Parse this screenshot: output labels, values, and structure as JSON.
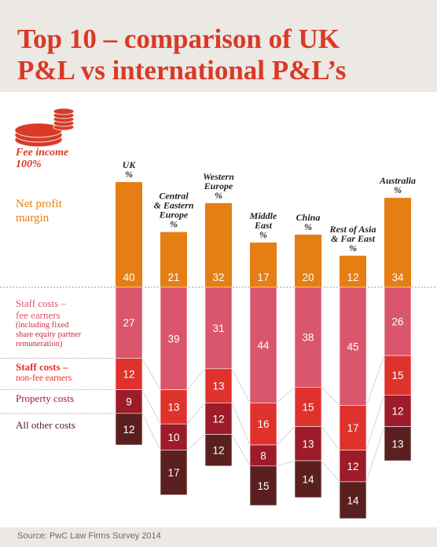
{
  "title_lines": [
    "Top 10 – comparison of UK",
    "P&L vs international P&L’s"
  ],
  "source": "Source: PwC Law Firms Survey 2014",
  "legend": {
    "fee_income": [
      "Fee income",
      "100%"
    ],
    "net_profit": [
      "Net profit",
      "margin"
    ],
    "staff_fee": [
      "Staff costs –",
      "fee earners"
    ],
    "staff_fee_sub": [
      "(including fixed",
      "share equity partner",
      "remuneration)"
    ],
    "staff_non_fee": [
      "Staff costs –",
      "non-fee earners"
    ],
    "property": "Property costs",
    "other": "All other costs"
  },
  "colors": {
    "title": "#d93a26",
    "net_profit": "#e57f14",
    "staff_fee": "#d9566c",
    "staff_non_fee": "#e0322c",
    "property": "#9e1b2a",
    "other": "#5a1f1f",
    "header_bg": "#ece8e4"
  },
  "icon": "coin-stack-icon",
  "chart_data": {
    "type": "bar",
    "stacked": true,
    "unit": "%",
    "categories": [
      [
        "UK",
        "%"
      ],
      [
        "Central",
        "& Eastern",
        "Europe",
        "%"
      ],
      [
        "Western",
        "Europe",
        "%"
      ],
      [
        "Middle",
        "East",
        "%"
      ],
      [
        "China",
        "%"
      ],
      [
        "Rest of Asia",
        "& Far East",
        "%"
      ],
      [
        "Australia",
        "%"
      ]
    ],
    "series": [
      {
        "name": "Net profit margin",
        "values": [
          40,
          21,
          32,
          17,
          20,
          12,
          34
        ]
      },
      {
        "name": "Staff costs – fee earners",
        "values": [
          27,
          39,
          31,
          44,
          38,
          45,
          26
        ]
      },
      {
        "name": "Staff costs – non-fee earners",
        "values": [
          12,
          13,
          13,
          16,
          15,
          17,
          15
        ]
      },
      {
        "name": "Property costs",
        "values": [
          9,
          10,
          12,
          8,
          13,
          12,
          12
        ]
      },
      {
        "name": "All other costs",
        "values": [
          12,
          17,
          12,
          15,
          14,
          14,
          13
        ]
      }
    ]
  }
}
